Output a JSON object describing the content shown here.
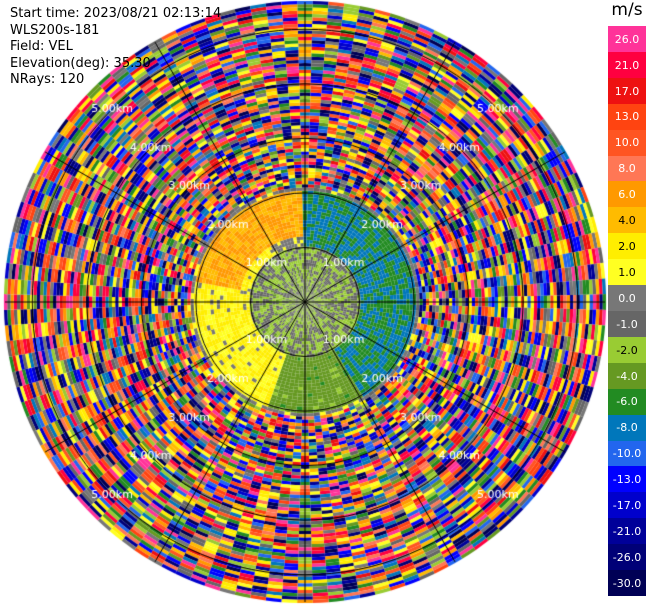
{
  "header": {
    "start_time": "Start time: 2023/08/21 02:13:14",
    "instrument": "WLS200s-181",
    "field": "Field: VEL",
    "elevation": "Elevation(deg): 35.30",
    "nrays": "NRays: 120"
  },
  "colorbar": {
    "unit": "m/s",
    "levels": [
      {
        "label": "26.0",
        "color": "#ff3399"
      },
      {
        "label": "21.0",
        "color": "#ff0040"
      },
      {
        "label": "17.0",
        "color": "#ee1111"
      },
      {
        "label": "13.0",
        "color": "#ff4411"
      },
      {
        "label": "10.0",
        "color": "#ff5522"
      },
      {
        "label": "8.0",
        "color": "#ff7755"
      },
      {
        "label": "6.0",
        "color": "#ff9900"
      },
      {
        "label": "4.0",
        "color": "#ffbb00"
      },
      {
        "label": "2.0",
        "color": "#ffee00"
      },
      {
        "label": "1.0",
        "color": "#ffff22"
      },
      {
        "label": "0.0",
        "color": "#777777"
      },
      {
        "label": "-1.0",
        "color": "#666666"
      },
      {
        "label": "-2.0",
        "color": "#99cc33"
      },
      {
        "label": "-4.0",
        "color": "#669922"
      },
      {
        "label": "-6.0",
        "color": "#228b22"
      },
      {
        "label": "-8.0",
        "color": "#0077bb"
      },
      {
        "label": "-10.0",
        "color": "#2266ee"
      },
      {
        "label": "-13.0",
        "color": "#0000ff"
      },
      {
        "label": "-17.0",
        "color": "#0000cc"
      },
      {
        "label": "-21.0",
        "color": "#000099"
      },
      {
        "label": "-26.0",
        "color": "#000077"
      },
      {
        "label": "-30.0",
        "color": "#000055"
      }
    ]
  },
  "chart_data": {
    "type": "heatmap",
    "projection": "polar PPI",
    "field": "VEL",
    "units": "m/s",
    "nrays": 120,
    "elevation_deg": 35.3,
    "max_range_km": 5.5,
    "range_rings_km": [
      1,
      2,
      3,
      4,
      5
    ],
    "range_ring_labels": [
      "1.00km",
      "2.00km",
      "3.00km",
      "4.00km",
      "5.00km"
    ],
    "value_scale": [
      -30.0,
      -26.0,
      -21.0,
      -17.0,
      -13.0,
      -10.0,
      -8.0,
      -6.0,
      -4.0,
      -2.0,
      -1.0,
      0.0,
      1.0,
      2.0,
      4.0,
      6.0,
      8.0,
      10.0,
      13.0,
      17.0,
      21.0,
      26.0
    ],
    "inner_field_description": [
      {
        "range_km": [
          0,
          2.0
        ],
        "az_deg": [
          0,
          150
        ],
        "velocity_ms": -6.0
      },
      {
        "range_km": [
          0,
          2.0
        ],
        "az_deg": [
          150,
          200
        ],
        "velocity_ms": -3.0
      },
      {
        "range_km": [
          0,
          2.0
        ],
        "az_deg": [
          200,
          330
        ],
        "velocity_ms": 2.0
      },
      {
        "range_km": [
          1.2,
          2.0
        ],
        "az_deg": [
          280,
          360
        ],
        "velocity_ms": 6.0
      },
      {
        "range_km": [
          0,
          1.0
        ],
        "az_deg": [
          0,
          360
        ],
        "velocity_ms": -1.0
      }
    ],
    "outer_field": "noise (random velocities) beyond ~2.1 km"
  }
}
